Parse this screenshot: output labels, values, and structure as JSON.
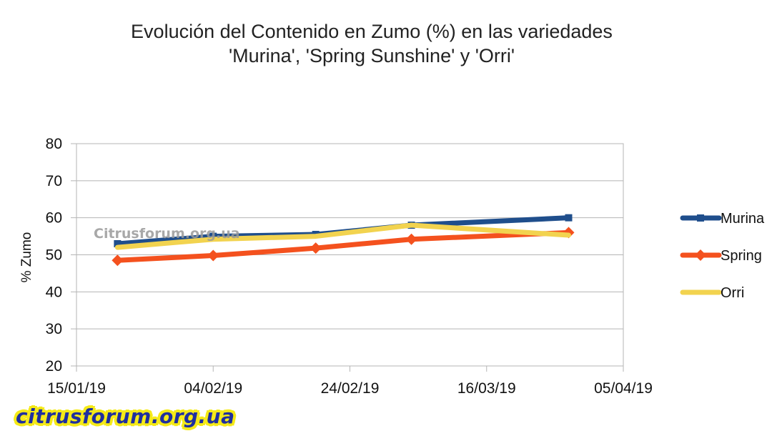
{
  "chart_data": {
    "type": "line",
    "title_line1": "Evolución del Contenido  en Zumo (%) en las variedades",
    "title_line2": "'Murina', 'Spring Sunshine'  y 'Orri'",
    "ylabel": "% Zumo",
    "xlabel": "",
    "ylim": [
      20,
      80
    ],
    "yticks": [
      20,
      30,
      40,
      50,
      60,
      70,
      80
    ],
    "xlim_days": [
      0,
      80
    ],
    "xticks": [
      {
        "day": 0,
        "label": "15/01/19"
      },
      {
        "day": 20,
        "label": "04/02/19"
      },
      {
        "day": 40,
        "label": "24/02/19"
      },
      {
        "day": 60,
        "label": "16/03/19"
      },
      {
        "day": 80,
        "label": "05/04/19"
      }
    ],
    "grid": "horizontal",
    "legend_position": "right",
    "series": [
      {
        "name": "Murina",
        "color": "#1f4e8c",
        "marker": "square",
        "x_days": [
          6,
          20,
          35,
          49,
          72
        ],
        "values": [
          53,
          55,
          55.5,
          58,
          60
        ]
      },
      {
        "name": "Spring",
        "color": "#f4511e",
        "marker": "diamond",
        "x_days": [
          6,
          20,
          35,
          49,
          72
        ],
        "values": [
          48.5,
          49.8,
          51.8,
          54.2,
          56
        ]
      },
      {
        "name": "Orri",
        "color": "#f2d34f",
        "marker": "none",
        "x_days": [
          6,
          20,
          35,
          49,
          72
        ],
        "values": [
          52,
          54.2,
          55,
          58,
          55.3
        ]
      }
    ]
  },
  "watermarks": {
    "center": "Citrusforum.org.ua",
    "logo": "citrusforum.org.ua"
  }
}
